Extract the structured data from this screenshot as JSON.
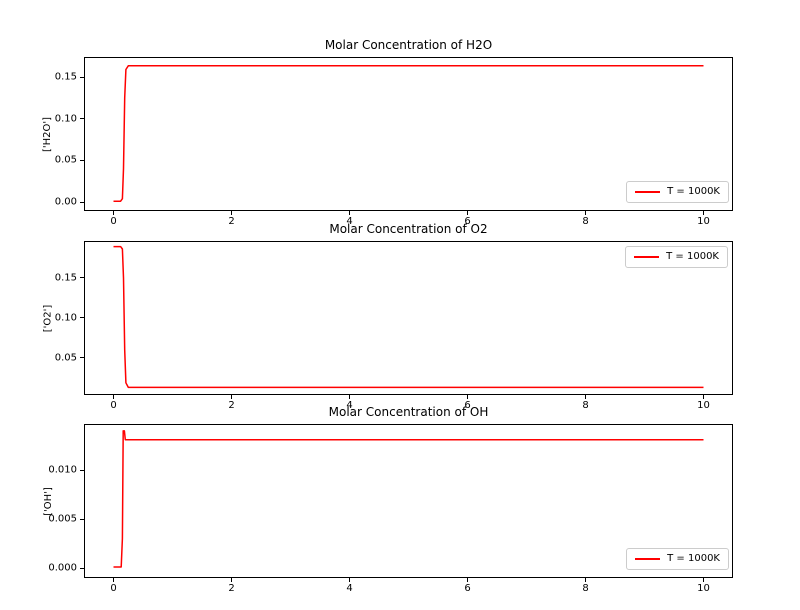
{
  "colors": {
    "background": "#ffffff",
    "line": "#ff0000",
    "frame": "#000000",
    "text": "#000000",
    "legend_border": "#cccccc"
  },
  "chart_data": [
    {
      "type": "line",
      "title": "Molar Concentration of H2O",
      "xlabel": "",
      "ylabel": "['H2O']",
      "xlim": [
        -0.5,
        10.5
      ],
      "ylim": [
        -0.0108,
        0.174
      ],
      "xticks": [
        0,
        2,
        4,
        6,
        8,
        10
      ],
      "xtick_labels": [
        "0",
        "2",
        "4",
        "6",
        "8",
        "10"
      ],
      "yticks": [
        0.0,
        0.05,
        0.1,
        0.15
      ],
      "ytick_labels": [
        "0.00",
        "0.05",
        "0.10",
        "0.15"
      ],
      "grid": false,
      "legend": {
        "loc": "lower right",
        "entries": [
          {
            "label": "T = 1000K",
            "color": "#ff0000"
          }
        ]
      },
      "series": [
        {
          "name": "T = 1000K",
          "color": "#ff0000",
          "x": [
            0,
            0.12,
            0.15,
            0.17,
            0.19,
            0.21,
            0.25,
            10
          ],
          "y": [
            0.001,
            0.001,
            0.004,
            0.04,
            0.125,
            0.159,
            0.1635,
            0.1635
          ]
        }
      ]
    },
    {
      "type": "line",
      "title": "Molar Concentration of O2",
      "xlabel": "",
      "ylabel": "['O2']",
      "xlim": [
        -0.5,
        10.5
      ],
      "ylim": [
        0.0038,
        0.196
      ],
      "xticks": [
        0,
        2,
        4,
        6,
        8,
        10
      ],
      "xtick_labels": [
        "0",
        "2",
        "4",
        "6",
        "8",
        "10"
      ],
      "yticks": [
        0.05,
        0.1,
        0.15
      ],
      "ytick_labels": [
        "0.05",
        "0.10",
        "0.15"
      ],
      "grid": false,
      "legend": {
        "loc": "upper right",
        "entries": [
          {
            "label": "T = 1000K",
            "color": "#ff0000"
          }
        ]
      },
      "series": [
        {
          "name": "T = 1000K",
          "color": "#ff0000",
          "x": [
            0,
            0.12,
            0.15,
            0.17,
            0.19,
            0.21,
            0.25,
            10
          ],
          "y": [
            0.189,
            0.189,
            0.186,
            0.15,
            0.06,
            0.019,
            0.0133,
            0.0133
          ]
        }
      ]
    },
    {
      "type": "line",
      "title": "Molar Concentration of OH",
      "xlabel": "",
      "ylabel": "['OH']",
      "xlim": [
        -0.5,
        10.5
      ],
      "ylim": [
        -0.00102,
        0.0147
      ],
      "xticks": [
        0,
        2,
        4,
        6,
        8,
        10
      ],
      "xtick_labels": [
        "0",
        "2",
        "4",
        "6",
        "8",
        "10"
      ],
      "yticks": [
        0.0,
        0.005,
        0.01
      ],
      "ytick_labels": [
        "0.000",
        "0.005",
        "0.010"
      ],
      "grid": false,
      "legend": {
        "loc": "lower right",
        "entries": [
          {
            "label": "T = 1000K",
            "color": "#ff0000"
          }
        ]
      },
      "series": [
        {
          "name": "T = 1000K",
          "color": "#ff0000",
          "x": [
            0,
            0.13,
            0.15,
            0.165,
            0.185,
            0.2,
            10
          ],
          "y": [
            0.0001,
            0.0001,
            0.003,
            0.014,
            0.014,
            0.0131,
            0.0131
          ]
        }
      ]
    }
  ]
}
